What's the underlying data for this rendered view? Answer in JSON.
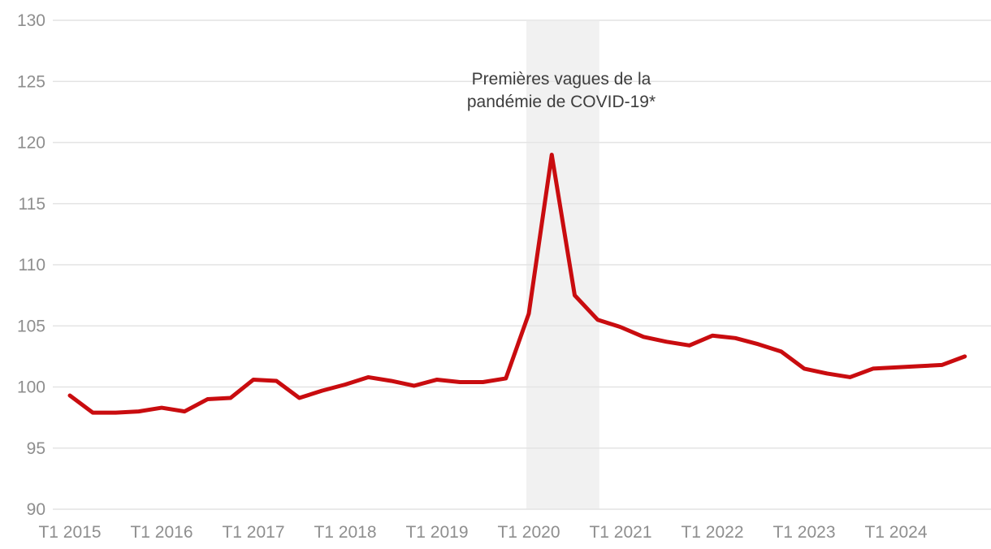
{
  "page": {
    "background_color": "#ffffff"
  },
  "colors": {
    "line_red": "#c90c0f",
    "gridline": "#e4e4e4",
    "band_gray": "#f1f1f1",
    "tick_label_gray": "#8e8e8e",
    "annotation_text": "#3d3d3d"
  },
  "chart_data": {
    "type": "line",
    "title": "",
    "xlabel": "",
    "ylabel": "",
    "ylim": [
      90,
      130
    ],
    "y_ticks": [
      130,
      125,
      120,
      115,
      110,
      105,
      100,
      95,
      90
    ],
    "grid": "horizontal-only",
    "legend": "none",
    "x_tick_labels": [
      "T1 2015",
      "T1 2016",
      "T1 2017",
      "T1 2018",
      "T1 2019",
      "T1 2020",
      "T1 2021",
      "T1 2022",
      "T1 2023",
      "T1 2024"
    ],
    "quarters": [
      "T1 2015",
      "T2 2015",
      "T3 2015",
      "T4 2015",
      "T1 2016",
      "T2 2016",
      "T3 2016",
      "T4 2016",
      "T1 2017",
      "T2 2017",
      "T3 2017",
      "T4 2017",
      "T1 2018",
      "T2 2018",
      "T3 2018",
      "T4 2018",
      "T1 2019",
      "T2 2019",
      "T3 2019",
      "T4 2019",
      "T1 2020",
      "T2 2020",
      "T3 2020",
      "T4 2020",
      "T1 2021",
      "T2 2021",
      "T3 2021",
      "T4 2021",
      "T1 2022",
      "T2 2022",
      "T3 2022",
      "T4 2022",
      "T1 2023",
      "T2 2023",
      "T3 2023",
      "T4 2023",
      "T1 2024",
      "T2 2024",
      "T3 2024",
      "T4 2024"
    ],
    "series": [
      {
        "name": "indice-trimestriel",
        "color": "#c90c0f",
        "values": [
          99.3,
          97.9,
          97.9,
          98.0,
          98.3,
          98.0,
          99.0,
          99.1,
          100.6,
          100.5,
          99.1,
          99.7,
          100.2,
          100.8,
          100.5,
          100.1,
          100.6,
          100.4,
          100.4,
          100.7,
          106.0,
          119.0,
          107.5,
          105.5,
          104.9,
          104.1,
          103.7,
          103.4,
          104.2,
          104.0,
          103.5,
          102.9,
          101.5,
          101.1,
          100.8,
          101.5,
          101.6,
          101.7,
          101.8,
          102.5
        ]
      }
    ],
    "band": {
      "from_quarter": "T1 2020",
      "to_quarter": "T4 2020",
      "color": "#f1f1f1"
    },
    "annotation": {
      "lines": [
        "Premières vagues de la",
        "pandémie de COVID-19*"
      ]
    }
  }
}
